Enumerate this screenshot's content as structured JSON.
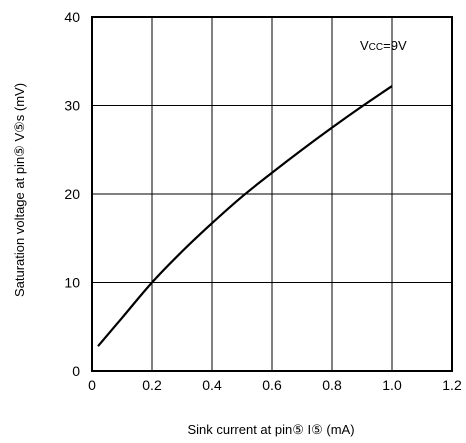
{
  "chart_data": {
    "type": "line",
    "xlabel": "Sink current at pin⑤ I⑤ (mA)",
    "ylabel": "Saturation voltage at pin⑤ V⑤s  (mV)",
    "xlim": [
      0,
      1.2
    ],
    "ylim": [
      0,
      40
    ],
    "xticks": [
      "0",
      "0.2",
      "0.4",
      "0.6",
      "0.8",
      "1.0",
      "1.2"
    ],
    "yticks": [
      "0",
      "10",
      "20",
      "30",
      "40"
    ],
    "grid": true,
    "annotation": "Vcc=9V",
    "series": [
      {
        "x": [
          0.02,
          0.1,
          0.2,
          0.3,
          0.4,
          0.5,
          0.6,
          0.7,
          0.8,
          0.9,
          1.0
        ],
        "y": [
          2.8,
          6.0,
          10.0,
          13.5,
          16.7,
          19.7,
          22.4,
          25.0,
          27.5,
          29.9,
          32.2
        ]
      }
    ]
  }
}
